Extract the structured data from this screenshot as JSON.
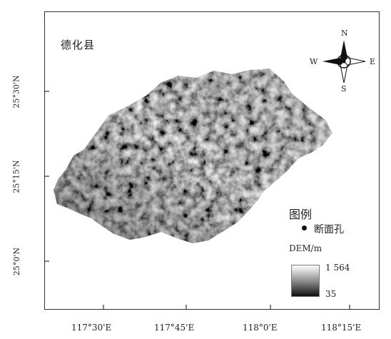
{
  "map": {
    "title": "德化县",
    "lat_labels": [
      "25°30'N",
      "25°15'N",
      "25°0'N"
    ],
    "lon_labels": [
      "117°30'E",
      "117°45'E",
      "118°0'E",
      "118°15'E"
    ]
  },
  "compass": {
    "north": "N",
    "south": "S",
    "east": "E",
    "west": "W"
  },
  "legend": {
    "title": "图例",
    "point_label": "断面孔",
    "dem_title": "DEM/m",
    "dem_max": "1 564",
    "dem_min": "35",
    "colors": {
      "high": "#ffffff",
      "low": "#0d0d0d"
    }
  }
}
